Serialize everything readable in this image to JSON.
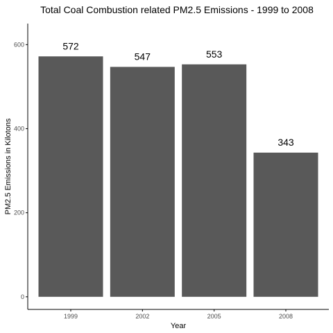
{
  "colors": {
    "bar": "#595959",
    "axis": "#000000",
    "tick_text": "#4d4d4d",
    "background": "#ffffff"
  },
  "chart_data": {
    "type": "bar",
    "title": "Total Coal Combustion related PM2.5 Emissions - 1999 to 2008",
    "xlabel": "Year",
    "ylabel": "PM2.5 Emissions in Kilotons",
    "categories": [
      "1999",
      "2002",
      "2005",
      "2008"
    ],
    "values": [
      572,
      547,
      553,
      343
    ],
    "data_labels": [
      "572",
      "547",
      "553",
      "343"
    ],
    "ylim": [
      -30,
      650
    ],
    "yticks": [
      0,
      200,
      400,
      600
    ],
    "ytick_labels": [
      "0",
      "200",
      "400",
      "600"
    ],
    "grid": false,
    "legend": "none"
  }
}
